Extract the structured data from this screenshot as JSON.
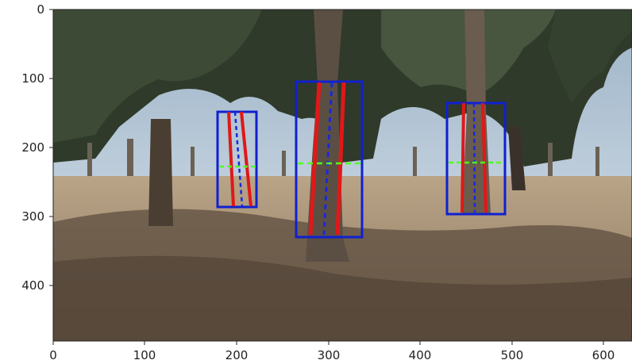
{
  "image": {
    "description_icon": "photo-forest-scene",
    "x_ticks": [
      "0",
      "100",
      "200",
      "300",
      "400",
      "500",
      "600"
    ],
    "y_ticks": [
      "0",
      "100",
      "200",
      "300",
      "400"
    ],
    "x_range": [
      0,
      630
    ],
    "y_range": [
      0,
      480
    ],
    "detections": [
      {
        "x0": 181,
        "y0": 148,
        "x1": 223,
        "y1": 286
      },
      {
        "x0": 266,
        "y0": 104,
        "x1": 337,
        "y1": 330
      },
      {
        "x0": 430,
        "y0": 136,
        "x1": 493,
        "y1": 297
      }
    ],
    "colors": {
      "box": "#1020d0",
      "edge_line": "#e01818",
      "center_line": "#1828e0",
      "width_line": "#50ff20"
    }
  }
}
